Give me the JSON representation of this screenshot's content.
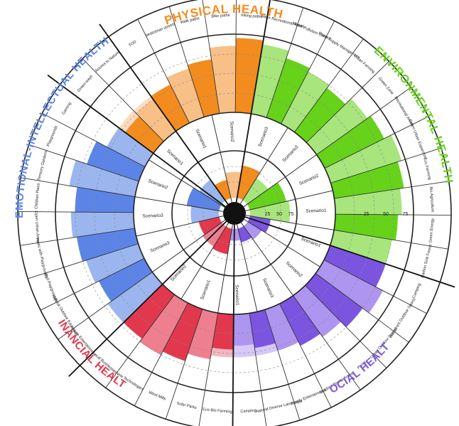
{
  "title": "",
  "categories": [
    {
      "id": "physical",
      "label": "PHYSICAL HEALTH",
      "color": "#f28c1e",
      "light": "#f8bf86",
      "pale": "#fbdcbc"
    },
    {
      "id": "environmental",
      "label": "ENVIRONMENTAL HEALTH",
      "color": "#66d21a",
      "light": "#a8e57c",
      "pale": "#cdf0b2"
    },
    {
      "id": "social",
      "label": "SOCIAL HEALTH",
      "color": "#7b55e0",
      "light": "#ae95ef",
      "pale": "#d6c8f7"
    },
    {
      "id": "financial",
      "label": "FINANCIAL HEALTH",
      "color": "#e2384e",
      "light": "#ee7f8e",
      "pale": "#f4b6c0"
    },
    {
      "id": "emotional",
      "label": "EMOTIONAL-INTELLECTUAL HEALTH",
      "color": "#5b84e6",
      "light": "#9bb5ef",
      "pale": "#c7d6f6"
    }
  ],
  "scale_labels": [
    "25",
    "50",
    "75"
  ],
  "inner_scenarios": [
    {
      "label": "Scenario1",
      "category": "physical",
      "value": 40
    },
    {
      "label": "Scenario2",
      "category": "physical",
      "value": 55
    },
    {
      "label": "Scenario3",
      "category": "physical",
      "value": 70
    },
    {
      "label": "Scenario3",
      "category": "environmental",
      "value": 55
    },
    {
      "label": "Scenario2",
      "category": "environmental",
      "value": 80
    },
    {
      "label": "Scenario1",
      "category": "environmental",
      "value": 85
    },
    {
      "label": "Scenario1",
      "category": "social",
      "value": 45
    },
    {
      "label": "Scenario2",
      "category": "social",
      "value": 35
    },
    {
      "label": "Scenario3",
      "category": "social",
      "value": 30
    },
    {
      "label": "Scenario1",
      "category": "social",
      "value": 25
    },
    {
      "label": "Scenario1",
      "category": "financial",
      "value": 55
    },
    {
      "label": "Scenario2",
      "category": "financial",
      "value": 50
    },
    {
      "label": "Scenario3",
      "category": "financial",
      "value": 45
    },
    {
      "label": "Scenario3",
      "category": "emotional",
      "value": 60
    },
    {
      "label": "Scenario2",
      "category": "emotional",
      "value": 70
    },
    {
      "label": "Scenario1",
      "category": "emotional",
      "value": 55
    }
  ],
  "outer_items": [
    {
      "label": "TOD",
      "category": "physical",
      "value": 55
    },
    {
      "label": "pedestrian streets",
      "category": "physical",
      "value": 65
    },
    {
      "label": "Walk paths",
      "category": "physical",
      "value": 70
    },
    {
      "label": "Bike paths",
      "category": "physical",
      "value": 85
    },
    {
      "label": "hiking paths",
      "category": "physical",
      "value": 95
    },
    {
      "label": "Water Recreational Areas",
      "category": "environmental",
      "value": 90
    },
    {
      "label": "Water Pollution Control",
      "category": "environmental",
      "value": 80
    },
    {
      "label": "Water Supply Management",
      "category": "environmental",
      "value": 75
    },
    {
      "label": "Urban Farming",
      "category": "environmental",
      "value": 70
    },
    {
      "label": "Green Zone",
      "category": "environmental",
      "value": 80
    },
    {
      "label": "Recreational Areas",
      "category": "environmental",
      "value": 85
    },
    {
      "label": "Green Urban Expansion",
      "category": "environmental",
      "value": 95
    },
    {
      "label": "Eco Farming",
      "category": "environmental",
      "value": 90
    },
    {
      "label": "Bio Agriculture",
      "category": "environmental",
      "value": 85
    },
    {
      "label": "Green Energy",
      "category": "environmental",
      "value": 80
    },
    {
      "label": "Carbon Sink Forest",
      "category": "environmental",
      "value": 75
    },
    {
      "label": "Camping",
      "category": "social",
      "value": 75
    },
    {
      "label": "Waterfront Outdoor Sports",
      "category": "social",
      "value": 85
    },
    {
      "label": "Urban Outdoor Sports",
      "category": "social",
      "value": 75
    },
    {
      "label": "Parks",
      "category": "social",
      "value": 65
    },
    {
      "label": "Outdoor Sports Areas",
      "category": "social",
      "value": 60
    },
    {
      "label": "Family Entertainment",
      "category": "social",
      "value": 55
    },
    {
      "label": "Natural Diverse Landscape",
      "category": "social",
      "value": 45
    },
    {
      "label": "Camping",
      "category": "social",
      "value": 40
    },
    {
      "label": "Eco-Bio Farming",
      "category": "financial",
      "value": 45
    },
    {
      "label": "Solar Parks",
      "category": "financial",
      "value": 60
    },
    {
      "label": "Wind Mills",
      "category": "financial",
      "value": 70
    },
    {
      "label": "New Technologies",
      "category": "financial",
      "value": 75
    },
    {
      "label": "Local Businesses",
      "category": "financial",
      "value": 70
    },
    {
      "label": "Private Entertainment",
      "category": "emotional",
      "value": 70
    },
    {
      "label": "Natural Outdoor Education",
      "category": "emotional",
      "value": 65
    },
    {
      "label": "Bird Playgrounds",
      "category": "emotional",
      "value": 70
    },
    {
      "label": "Parks with Playgrounds",
      "category": "emotional",
      "value": 75
    },
    {
      "label": "Open Urban Areas",
      "category": "emotional",
      "value": 80
    },
    {
      "label": "Children Plaza",
      "category": "emotional",
      "value": 75
    },
    {
      "label": "Sensory Gardens",
      "category": "emotional",
      "value": 85
    },
    {
      "label": "Playgrounds",
      "category": "emotional",
      "value": 70
    },
    {
      "label": "Gaming",
      "category": "emotional",
      "value": 55
    },
    {
      "label": "Green ways",
      "category": "physical",
      "value": 45
    },
    {
      "label": "Access to Nature",
      "category": "physical",
      "value": 50
    }
  ]
}
